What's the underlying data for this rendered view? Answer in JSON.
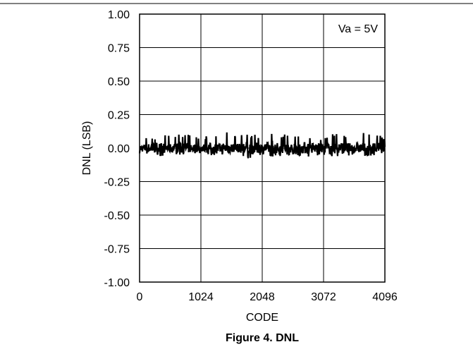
{
  "caption": "Figure 4. DNL",
  "chart_data": {
    "type": "line",
    "title": "",
    "xlabel": "CODE",
    "ylabel": "DNL (LSB)",
    "xlim": [
      0,
      4096
    ],
    "ylim": [
      -1.0,
      1.0
    ],
    "x_ticks": [
      0,
      1024,
      2048,
      3072,
      4096
    ],
    "x_tick_labels": [
      "0",
      "1024",
      "2048",
      "3072",
      "4096"
    ],
    "y_ticks": [
      1.0,
      0.75,
      0.5,
      0.25,
      0.0,
      -0.25,
      -0.5,
      -0.75,
      -1.0
    ],
    "y_tick_labels": [
      "1.00",
      "0.75",
      "0.50",
      "0.25",
      "0.00",
      "-0.25",
      "-0.50",
      "-0.75",
      "-1.00"
    ],
    "grid": true,
    "annotation": "Va = 5V",
    "annotation_position": "top-right",
    "series": [
      {
        "x": [
          0,
          128,
          256,
          384,
          512,
          640,
          768,
          896,
          1024,
          1152,
          1280,
          1408,
          1536,
          1664,
          1792,
          1920,
          2048,
          2176,
          2304,
          2432,
          2560,
          2688,
          2816,
          2944,
          3072,
          3200,
          3328,
          3456,
          3584,
          3712,
          3840,
          3968,
          4096
        ],
        "upper": [
          0.04,
          0.09,
          0.08,
          0.1,
          0.09,
          0.12,
          0.1,
          0.1,
          0.07,
          0.1,
          0.11,
          0.15,
          0.1,
          0.12,
          0.11,
          0.1,
          0.07,
          0.12,
          0.1,
          0.11,
          0.08,
          0.12,
          0.1,
          0.09,
          0.07,
          0.1,
          0.12,
          0.1,
          0.1,
          0.12,
          0.1,
          0.12,
          0.06
        ],
        "lower": [
          -0.04,
          -0.05,
          -0.06,
          -0.06,
          -0.05,
          -0.06,
          -0.06,
          -0.05,
          -0.04,
          -0.06,
          -0.05,
          -0.06,
          -0.06,
          -0.05,
          -0.08,
          -0.07,
          -0.05,
          -0.07,
          -0.06,
          -0.06,
          -0.05,
          -0.06,
          -0.07,
          -0.06,
          -0.05,
          -0.06,
          -0.07,
          -0.06,
          -0.05,
          -0.06,
          -0.06,
          -0.07,
          -0.05
        ]
      }
    ]
  }
}
